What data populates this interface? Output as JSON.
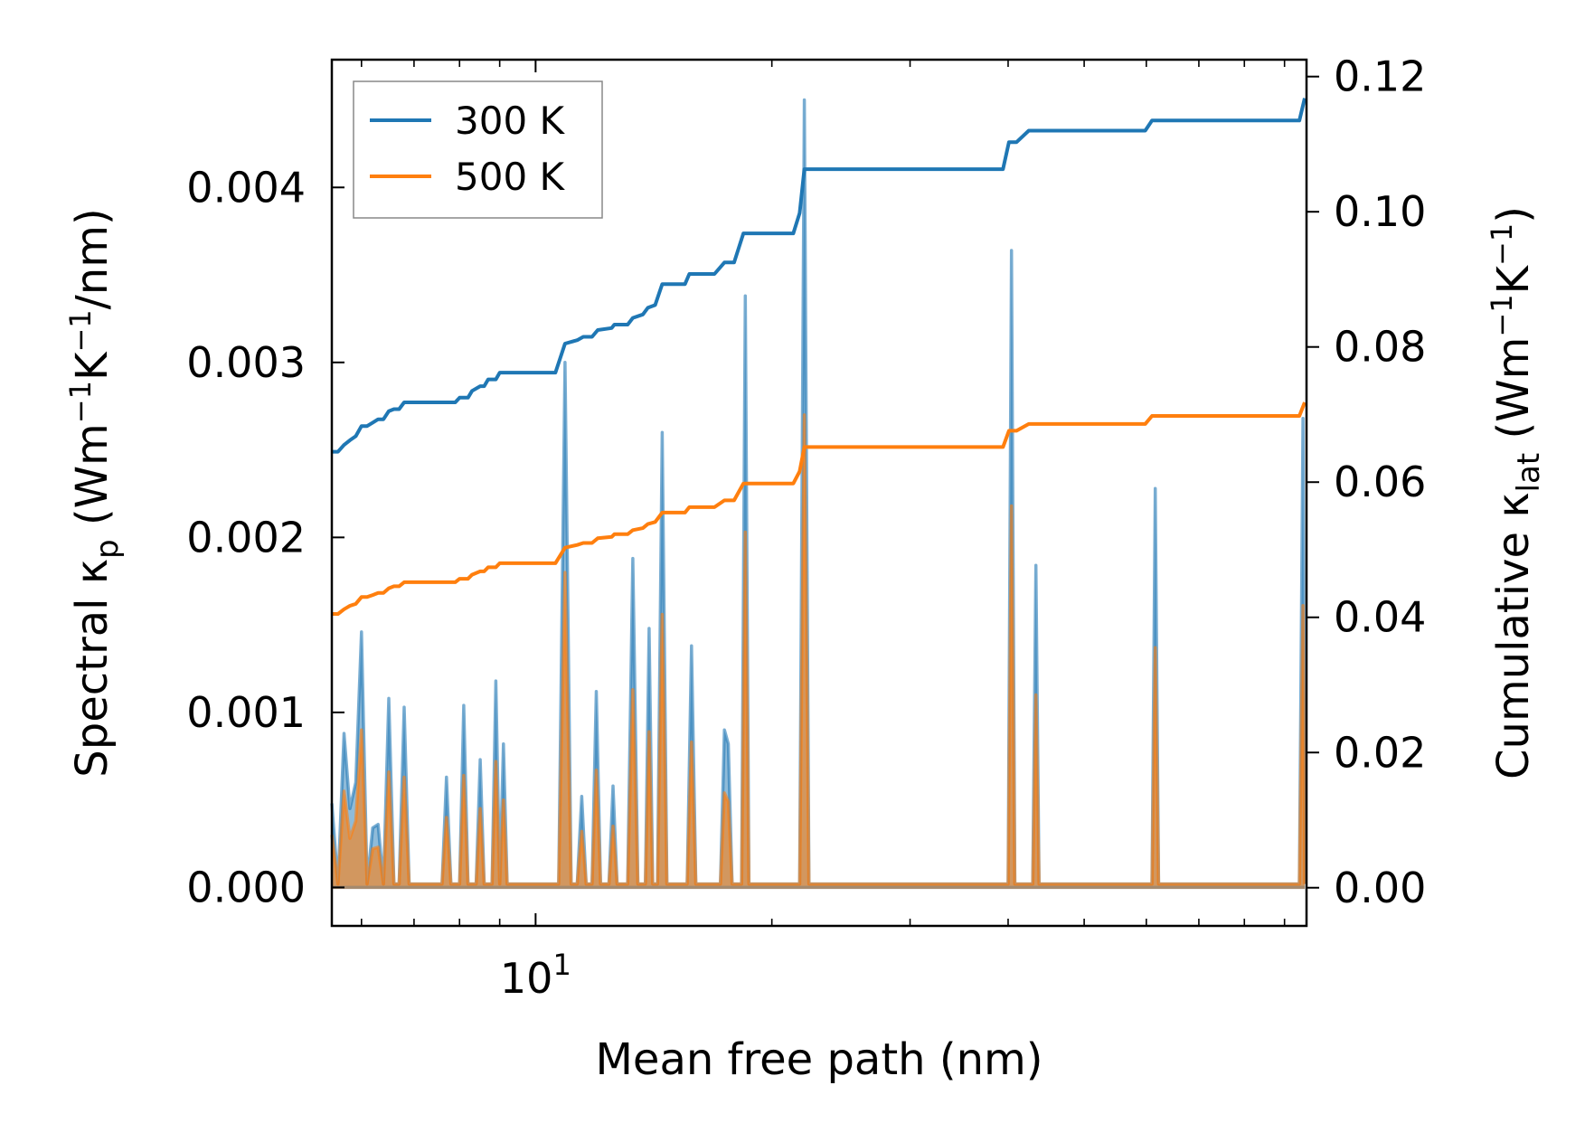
{
  "chart_data": {
    "type": "line",
    "title": "",
    "xlabel": "Mean free path (nm)",
    "ylabel_left": {
      "main": "Spectral κ",
      "sub": "p",
      "unit_open": " (Wm",
      "exp1": "−1",
      "mid": "K",
      "exp2": "−1",
      "unit_close": "/nm)"
    },
    "ylabel_right": {
      "main": "Cumulative κ",
      "sub": "lat",
      "unit_open": " (Wm",
      "exp1": "−1",
      "mid": "K",
      "exp2": "−1",
      "unit_close": ")"
    },
    "xscale": "log",
    "xlim": [
      5.5,
      96
    ],
    "x_tick_label": {
      "base": "10",
      "exp": "1",
      "value": 10
    },
    "ylim_left": [
      -0.00022,
      0.00473
    ],
    "ylim_right": [
      -0.00565,
      0.1225
    ],
    "yticks_left": [
      "0.000",
      "0.001",
      "0.002",
      "0.003",
      "0.004"
    ],
    "yticks_left_values": [
      0,
      0.001,
      0.002,
      0.003,
      0.004
    ],
    "yticks_right": [
      "0.00",
      "0.02",
      "0.04",
      "0.06",
      "0.08",
      "0.10",
      "0.12"
    ],
    "yticks_right_values": [
      0,
      0.02,
      0.04,
      0.06,
      0.08,
      0.1,
      0.12
    ],
    "legend": {
      "position": "upper-left",
      "entries": [
        "300 K",
        "500 K"
      ]
    },
    "colors": {
      "s300": "#1f77b4",
      "s500": "#ff7f0e"
    },
    "spectral_300K": [
      [
        5.5,
        0.00048
      ],
      [
        5.6,
        2e-05
      ],
      [
        5.7,
        0.00088
      ],
      [
        5.8,
        0.00045
      ],
      [
        5.9,
        0.0006
      ],
      [
        6.0,
        0.00146
      ],
      [
        6.1,
        2e-05
      ],
      [
        6.2,
        0.00034
      ],
      [
        6.3,
        0.00036
      ],
      [
        6.4,
        2e-05
      ],
      [
        6.5,
        0.00108
      ],
      [
        6.6,
        2e-05
      ],
      [
        6.7,
        2e-05
      ],
      [
        6.8,
        0.00103
      ],
      [
        6.9,
        2e-05
      ],
      [
        7.6,
        2e-05
      ],
      [
        7.7,
        0.00063
      ],
      [
        7.8,
        2e-05
      ],
      [
        8.0,
        2e-05
      ],
      [
        8.1,
        0.00104
      ],
      [
        8.2,
        2e-05
      ],
      [
        8.4,
        2e-05
      ],
      [
        8.5,
        0.00073
      ],
      [
        8.6,
        2e-05
      ],
      [
        8.8,
        2e-05
      ],
      [
        8.9,
        0.00118
      ],
      [
        9.0,
        2e-05
      ],
      [
        9.1,
        0.00082
      ],
      [
        9.2,
        2e-05
      ],
      [
        10.7,
        2e-05
      ],
      [
        10.9,
        0.003
      ],
      [
        11.1,
        2e-05
      ],
      [
        11.3,
        2e-05
      ],
      [
        11.45,
        0.00052
      ],
      [
        11.6,
        2e-05
      ],
      [
        11.8,
        2e-05
      ],
      [
        11.95,
        0.00112
      ],
      [
        12.1,
        2e-05
      ],
      [
        12.4,
        2e-05
      ],
      [
        12.55,
        0.00058
      ],
      [
        12.7,
        2e-05
      ],
      [
        13.1,
        2e-05
      ],
      [
        13.3,
        0.00188
      ],
      [
        13.5,
        2e-05
      ],
      [
        13.8,
        2e-05
      ],
      [
        13.95,
        0.00148
      ],
      [
        14.1,
        2e-05
      ],
      [
        14.3,
        2e-05
      ],
      [
        14.5,
        0.0026
      ],
      [
        14.7,
        2e-05
      ],
      [
        15.6,
        2e-05
      ],
      [
        15.8,
        0.00138
      ],
      [
        16.0,
        2e-05
      ],
      [
        17.2,
        2e-05
      ],
      [
        17.4,
        0.0009
      ],
      [
        17.6,
        0.00082
      ],
      [
        17.8,
        2e-05
      ],
      [
        18.3,
        2e-05
      ],
      [
        18.5,
        0.00338
      ],
      [
        18.7,
        2e-05
      ],
      [
        21.7,
        2e-05
      ],
      [
        22.0,
        0.0045
      ],
      [
        22.3,
        2e-05
      ],
      [
        23.0,
        2e-05
      ],
      [
        40.0,
        2e-05
      ],
      [
        40.4,
        0.00364
      ],
      [
        40.8,
        2e-05
      ],
      [
        43.0,
        2e-05
      ],
      [
        43.4,
        0.00184
      ],
      [
        43.8,
        2e-05
      ],
      [
        61.0,
        2e-05
      ],
      [
        61.6,
        0.00228
      ],
      [
        62.2,
        2e-05
      ],
      [
        94.0,
        2e-05
      ],
      [
        95.0,
        0.00268
      ],
      [
        95.5,
        2e-05
      ]
    ],
    "spectral_500K": [
      [
        5.5,
        0.0003
      ],
      [
        5.6,
        2e-05
      ],
      [
        5.7,
        0.00055
      ],
      [
        5.8,
        0.00028
      ],
      [
        5.9,
        0.00038
      ],
      [
        6.0,
        0.0009
      ],
      [
        6.1,
        2e-05
      ],
      [
        6.2,
        0.00022
      ],
      [
        6.3,
        0.00023
      ],
      [
        6.4,
        2e-05
      ],
      [
        6.5,
        0.00066
      ],
      [
        6.6,
        2e-05
      ],
      [
        6.7,
        2e-05
      ],
      [
        6.8,
        0.00063
      ],
      [
        6.9,
        2e-05
      ],
      [
        7.6,
        2e-05
      ],
      [
        7.7,
        0.0004
      ],
      [
        7.8,
        2e-05
      ],
      [
        8.0,
        2e-05
      ],
      [
        8.1,
        0.00064
      ],
      [
        8.2,
        2e-05
      ],
      [
        8.4,
        2e-05
      ],
      [
        8.5,
        0.00045
      ],
      [
        8.6,
        2e-05
      ],
      [
        8.8,
        2e-05
      ],
      [
        8.9,
        0.00072
      ],
      [
        9.0,
        2e-05
      ],
      [
        9.1,
        0.0005
      ],
      [
        9.2,
        2e-05
      ],
      [
        10.7,
        2e-05
      ],
      [
        10.9,
        0.0018
      ],
      [
        11.1,
        2e-05
      ],
      [
        11.3,
        2e-05
      ],
      [
        11.45,
        0.00032
      ],
      [
        11.6,
        2e-05
      ],
      [
        11.8,
        2e-05
      ],
      [
        11.95,
        0.00067
      ],
      [
        12.1,
        2e-05
      ],
      [
        12.4,
        2e-05
      ],
      [
        12.55,
        0.00035
      ],
      [
        12.7,
        2e-05
      ],
      [
        13.1,
        2e-05
      ],
      [
        13.3,
        0.00113
      ],
      [
        13.5,
        2e-05
      ],
      [
        13.8,
        2e-05
      ],
      [
        13.95,
        0.00089
      ],
      [
        14.1,
        2e-05
      ],
      [
        14.3,
        2e-05
      ],
      [
        14.5,
        0.00156
      ],
      [
        14.7,
        2e-05
      ],
      [
        15.6,
        2e-05
      ],
      [
        15.8,
        0.00083
      ],
      [
        16.0,
        2e-05
      ],
      [
        17.2,
        2e-05
      ],
      [
        17.4,
        0.00054
      ],
      [
        17.6,
        0.00049
      ],
      [
        17.8,
        2e-05
      ],
      [
        18.3,
        2e-05
      ],
      [
        18.5,
        0.00203
      ],
      [
        18.7,
        2e-05
      ],
      [
        21.7,
        2e-05
      ],
      [
        22.0,
        0.0027
      ],
      [
        22.3,
        2e-05
      ],
      [
        23.0,
        2e-05
      ],
      [
        40.0,
        2e-05
      ],
      [
        40.4,
        0.00218
      ],
      [
        40.8,
        2e-05
      ],
      [
        43.0,
        2e-05
      ],
      [
        43.4,
        0.0011
      ],
      [
        43.8,
        2e-05
      ],
      [
        61.0,
        2e-05
      ],
      [
        61.6,
        0.00137
      ],
      [
        62.2,
        2e-05
      ],
      [
        94.0,
        2e-05
      ],
      [
        95.0,
        0.00161
      ],
      [
        95.5,
        2e-05
      ]
    ],
    "cumulative_300K": [
      [
        5.5,
        0.0645
      ],
      [
        5.6,
        0.0645
      ],
      [
        5.7,
        0.0655
      ],
      [
        5.8,
        0.0662
      ],
      [
        5.9,
        0.0668
      ],
      [
        6.0,
        0.0683
      ],
      [
        6.1,
        0.0683
      ],
      [
        6.2,
        0.0688
      ],
      [
        6.3,
        0.0693
      ],
      [
        6.4,
        0.0693
      ],
      [
        6.5,
        0.0705
      ],
      [
        6.6,
        0.0708
      ],
      [
        6.7,
        0.0708
      ],
      [
        6.8,
        0.0718
      ],
      [
        6.9,
        0.0718
      ],
      [
        7.9,
        0.0718
      ],
      [
        8.0,
        0.0725
      ],
      [
        8.2,
        0.0725
      ],
      [
        8.3,
        0.0735
      ],
      [
        8.5,
        0.0742
      ],
      [
        8.6,
        0.0742
      ],
      [
        8.7,
        0.0752
      ],
      [
        8.9,
        0.0752
      ],
      [
        9.0,
        0.0762
      ],
      [
        10.6,
        0.0762
      ],
      [
        10.9,
        0.0805
      ],
      [
        11.3,
        0.081
      ],
      [
        11.5,
        0.0815
      ],
      [
        11.8,
        0.0815
      ],
      [
        12.0,
        0.0825
      ],
      [
        12.5,
        0.0828
      ],
      [
        12.6,
        0.0833
      ],
      [
        13.1,
        0.0833
      ],
      [
        13.3,
        0.0843
      ],
      [
        13.7,
        0.0848
      ],
      [
        13.9,
        0.0858
      ],
      [
        14.2,
        0.0862
      ],
      [
        14.5,
        0.0893
      ],
      [
        15.5,
        0.0893
      ],
      [
        15.7,
        0.0908
      ],
      [
        16.9,
        0.0908
      ],
      [
        17.4,
        0.0925
      ],
      [
        17.9,
        0.0925
      ],
      [
        18.4,
        0.0968
      ],
      [
        21.3,
        0.0968
      ],
      [
        21.7,
        0.0998
      ],
      [
        22.0,
        0.1063
      ],
      [
        39.4,
        0.1063
      ],
      [
        40.1,
        0.1103
      ],
      [
        41.0,
        0.1103
      ],
      [
        42.5,
        0.112
      ],
      [
        59.8,
        0.112
      ],
      [
        61.0,
        0.1135
      ],
      [
        89.0,
        0.1135
      ],
      [
        94.0,
        0.1135
      ],
      [
        95.5,
        0.1168
      ]
    ],
    "cumulative_500K": [
      [
        5.5,
        0.0405
      ],
      [
        5.6,
        0.0405
      ],
      [
        5.7,
        0.0412
      ],
      [
        5.8,
        0.0417
      ],
      [
        5.9,
        0.042
      ],
      [
        6.0,
        0.043
      ],
      [
        6.1,
        0.043
      ],
      [
        6.2,
        0.0433
      ],
      [
        6.3,
        0.0436
      ],
      [
        6.4,
        0.0436
      ],
      [
        6.5,
        0.0443
      ],
      [
        6.6,
        0.0446
      ],
      [
        6.7,
        0.0446
      ],
      [
        6.8,
        0.0452
      ],
      [
        6.9,
        0.0452
      ],
      [
        7.9,
        0.0452
      ],
      [
        8.0,
        0.0457
      ],
      [
        8.2,
        0.0457
      ],
      [
        8.3,
        0.0463
      ],
      [
        8.5,
        0.0468
      ],
      [
        8.6,
        0.0468
      ],
      [
        8.7,
        0.0474
      ],
      [
        8.9,
        0.0474
      ],
      [
        9.0,
        0.048
      ],
      [
        10.6,
        0.048
      ],
      [
        10.9,
        0.0503
      ],
      [
        11.3,
        0.0507
      ],
      [
        11.5,
        0.051
      ],
      [
        11.8,
        0.051
      ],
      [
        12.0,
        0.0517
      ],
      [
        12.5,
        0.0519
      ],
      [
        12.6,
        0.0523
      ],
      [
        13.1,
        0.0523
      ],
      [
        13.3,
        0.0529
      ],
      [
        13.7,
        0.0532
      ],
      [
        13.9,
        0.0538
      ],
      [
        14.2,
        0.0541
      ],
      [
        14.5,
        0.0555
      ],
      [
        15.5,
        0.0555
      ],
      [
        15.7,
        0.0563
      ],
      [
        16.9,
        0.0563
      ],
      [
        17.4,
        0.0573
      ],
      [
        17.9,
        0.0573
      ],
      [
        18.4,
        0.0598
      ],
      [
        21.3,
        0.0598
      ],
      [
        21.7,
        0.0616
      ],
      [
        22.0,
        0.0652
      ],
      [
        39.4,
        0.0652
      ],
      [
        40.1,
        0.0676
      ],
      [
        41.0,
        0.0676
      ],
      [
        42.5,
        0.0686
      ],
      [
        59.8,
        0.0686
      ],
      [
        61.0,
        0.0698
      ],
      [
        89.0,
        0.0698
      ],
      [
        94.0,
        0.0698
      ],
      [
        95.5,
        0.0718
      ]
    ]
  }
}
